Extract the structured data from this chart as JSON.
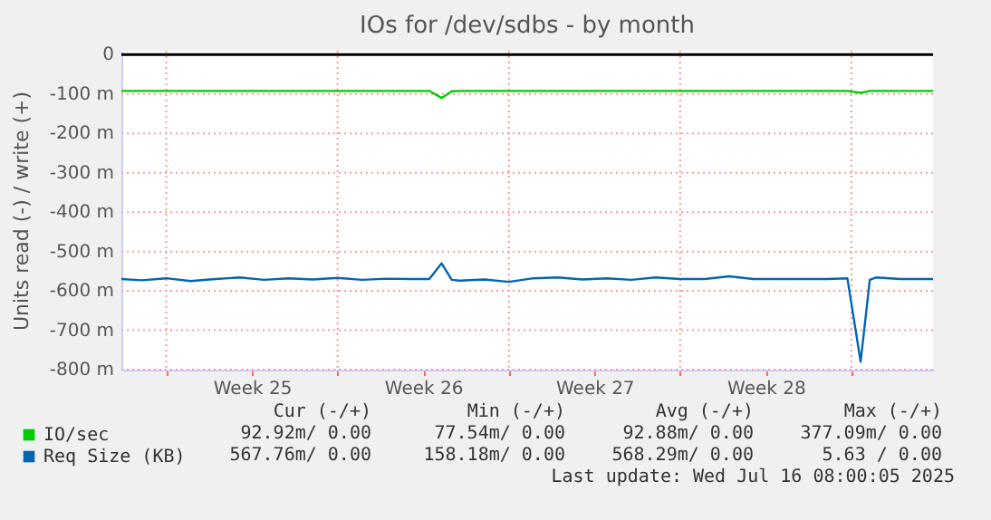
{
  "chart_data": {
    "type": "line",
    "title": "IOs for /dev/sdbs - by month",
    "ylabel": "Units read (-) / write (+)",
    "x": [
      "2025-06-13T04:00",
      "2025-06-14",
      "2025-06-15",
      "2025-06-16",
      "2025-06-17",
      "2025-06-18",
      "2025-06-19",
      "2025-06-20",
      "2025-06-21",
      "2025-06-22",
      "2025-06-23",
      "2025-06-24",
      "2025-06-25",
      "2025-06-25T18:00",
      "2025-06-26T06:00",
      "2025-06-26T16:00",
      "2025-06-27",
      "2025-06-28",
      "2025-06-29",
      "2025-06-30",
      "2025-07-01",
      "2025-07-02",
      "2025-07-03",
      "2025-07-04",
      "2025-07-05",
      "2025-07-06",
      "2025-07-07",
      "2025-07-08",
      "2025-07-09",
      "2025-07-10",
      "2025-07-11",
      "2025-07-12",
      "2025-07-12T20:00",
      "2025-07-13T09:00",
      "2025-07-13T18:00",
      "2025-07-14",
      "2025-07-15",
      "2025-07-16T08:00"
    ],
    "series": [
      {
        "name": "IO/sec",
        "color": "#00cc00",
        "values": [
          -92,
          -92,
          -92,
          -92,
          -92,
          -92,
          -92,
          -92,
          -92,
          -92,
          -92,
          -92,
          -92,
          -92,
          -110,
          -93,
          -92,
          -92,
          -92,
          -92,
          -92,
          -92,
          -92,
          -92,
          -92,
          -92,
          -92,
          -92,
          -92,
          -92,
          -92,
          -92,
          -92,
          -97,
          -92,
          -92,
          -92,
          -92
        ]
      },
      {
        "name": "Req Size (KB)",
        "color": "#0066b3",
        "values": [
          -570,
          -573,
          -568,
          -575,
          -570,
          -566,
          -572,
          -568,
          -571,
          -567,
          -572,
          -569,
          -570,
          -570,
          -530,
          -572,
          -574,
          -571,
          -577,
          -568,
          -566,
          -571,
          -568,
          -572,
          -566,
          -570,
          -570,
          -563,
          -570,
          -570,
          -570,
          -570,
          -568,
          -780,
          -572,
          -566,
          -570,
          -570
        ]
      }
    ],
    "xlim": [
      "2025-06-13T04:00",
      "2025-07-16T08:00"
    ],
    "xticks": [
      {
        "value": "2025-06-15",
        "label": null
      },
      {
        "value": "2025-06-18T12:00",
        "label": "Week 25"
      },
      {
        "value": "2025-06-22",
        "label": null
      },
      {
        "value": "2025-06-25T12:00",
        "label": "Week 26"
      },
      {
        "value": "2025-06-29",
        "label": null
      },
      {
        "value": "2025-07-02T12:00",
        "label": "Week 27"
      },
      {
        "value": "2025-07-06",
        "label": null
      },
      {
        "value": "2025-07-09T12:00",
        "label": "Week 28"
      },
      {
        "value": "2025-07-13",
        "label": null
      }
    ],
    "ylim": [
      -800,
      10
    ],
    "yticks": [
      0,
      {
        "value": -100,
        "label": "-100 m"
      },
      {
        "value": -200,
        "label": "-200 m"
      },
      {
        "value": -300,
        "label": "-300 m"
      },
      {
        "value": -400,
        "label": "-400 m"
      },
      {
        "value": -500,
        "label": "-500 m"
      },
      {
        "value": -600,
        "label": "-600 m"
      },
      {
        "value": -700,
        "label": "-700 m"
      },
      {
        "value": -800,
        "label": "-800 m"
      }
    ],
    "ref_lines": [
      {
        "axis": "y",
        "value": 0,
        "color": "#000000"
      }
    ],
    "grid": true,
    "legend": "bottom",
    "marker": "none",
    "line_style": "solid",
    "annotations": [
      "Cur (-/+)",
      "Min (-/+)",
      "Avg (-/+)",
      "Max (-/+)",
      "92.92m/  0.00",
      "77.54m/  0.00",
      "92.88m/  0.00",
      "377.09m/  0.00",
      "567.76m/  0.00",
      "158.18m/  0.00",
      "568.29m/  0.00",
      "5.63 /  0.00",
      "Last update: Wed Jul 16 08:00:05 2025"
    ]
  }
}
